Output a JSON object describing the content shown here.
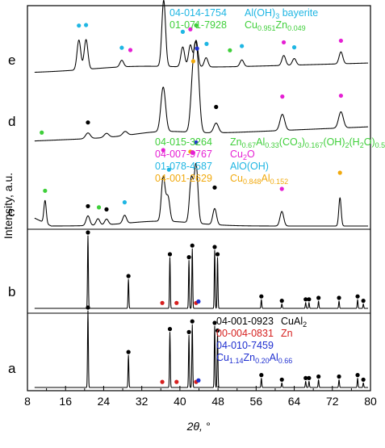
{
  "colors": {
    "black": "#000000",
    "red": "#d6201f",
    "blue": "#1f2fd0",
    "cyan": "#1fb6e3",
    "green": "#3fcf3a",
    "magenta": "#e51fd3",
    "orange": "#f1a90d"
  },
  "chart_data": {
    "type": "line",
    "xlabel": "2θ, °",
    "ylabel": "Intensity, a.u.",
    "xlim": [
      8,
      80
    ],
    "x_ticks": [
      "8",
      "16",
      "24",
      "32",
      "40",
      "48",
      "56",
      "64",
      "72",
      "80"
    ],
    "y_ticks_shown": false,
    "stacked": true,
    "series": [
      {
        "name": "a",
        "peaks": [
          [
            20.7,
            1.0
          ],
          [
            29.2,
            0.42
          ],
          [
            37.9,
            0.72
          ],
          [
            41.9,
            0.68
          ],
          [
            42.6,
            0.82
          ],
          [
            47.3,
            0.8
          ],
          [
            47.9,
            0.7
          ],
          [
            57.1,
            0.12
          ],
          [
            61.4,
            0.06
          ],
          [
            66.4,
            0.08
          ],
          [
            67.1,
            0.08
          ],
          [
            69.1,
            0.1
          ],
          [
            73.4,
            0.1
          ],
          [
            77.3,
            0.12
          ],
          [
            78.5,
            0.06
          ]
        ],
        "markers": [
          {
            "x": 20.7,
            "y": 1.0,
            "color": "black"
          },
          {
            "x": 29.2,
            "y": 0.42,
            "color": "black"
          },
          {
            "x": 36.3,
            "y": 0.03,
            "color": "red"
          },
          {
            "x": 37.9,
            "y": 0.72,
            "color": "black"
          },
          {
            "x": 39.3,
            "y": 0.03,
            "color": "red"
          },
          {
            "x": 41.9,
            "y": 0.68,
            "color": "black"
          },
          {
            "x": 42.6,
            "y": 0.82,
            "color": "black"
          },
          {
            "x": 43.4,
            "y": 0.03,
            "color": "red"
          },
          {
            "x": 43.9,
            "y": 0.05,
            "color": "blue"
          },
          {
            "x": 47.3,
            "y": 0.8,
            "color": "black"
          },
          {
            "x": 47.9,
            "y": 0.7,
            "color": "black"
          },
          {
            "x": 57.1,
            "y": 0.12,
            "color": "black"
          },
          {
            "x": 61.4,
            "y": 0.06,
            "color": "black"
          },
          {
            "x": 66.4,
            "y": 0.08,
            "color": "black"
          },
          {
            "x": 67.1,
            "y": 0.08,
            "color": "black"
          },
          {
            "x": 69.1,
            "y": 0.1,
            "color": "black"
          },
          {
            "x": 73.4,
            "y": 0.1,
            "color": "black"
          },
          {
            "x": 77.3,
            "y": 0.12,
            "color": "black"
          },
          {
            "x": 78.5,
            "y": 0.06,
            "color": "black"
          }
        ]
      },
      {
        "name": "b",
        "peaks": [
          [
            20.7,
            1.0
          ],
          [
            29.2,
            0.4
          ],
          [
            37.9,
            0.7
          ],
          [
            41.9,
            0.66
          ],
          [
            42.6,
            0.82
          ],
          [
            47.3,
            0.8
          ],
          [
            47.9,
            0.7
          ],
          [
            57.1,
            0.12
          ],
          [
            61.4,
            0.06
          ],
          [
            66.4,
            0.08
          ],
          [
            67.1,
            0.08
          ],
          [
            69.1,
            0.1
          ],
          [
            73.4,
            0.1
          ],
          [
            77.3,
            0.12
          ],
          [
            78.5,
            0.06
          ]
        ],
        "markers": [
          {
            "x": 20.7,
            "y": 1.0,
            "color": "black"
          },
          {
            "x": 29.2,
            "y": 0.4,
            "color": "black"
          },
          {
            "x": 36.3,
            "y": 0.03,
            "color": "red"
          },
          {
            "x": 37.9,
            "y": 0.7,
            "color": "black"
          },
          {
            "x": 39.3,
            "y": 0.03,
            "color": "red"
          },
          {
            "x": 41.9,
            "y": 0.66,
            "color": "black"
          },
          {
            "x": 42.6,
            "y": 0.82,
            "color": "black"
          },
          {
            "x": 43.4,
            "y": 0.03,
            "color": "red"
          },
          {
            "x": 43.9,
            "y": 0.05,
            "color": "blue"
          },
          {
            "x": 47.3,
            "y": 0.8,
            "color": "black"
          },
          {
            "x": 47.9,
            "y": 0.7,
            "color": "black"
          },
          {
            "x": 57.1,
            "y": 0.12,
            "color": "black"
          },
          {
            "x": 61.4,
            "y": 0.06,
            "color": "black"
          },
          {
            "x": 66.4,
            "y": 0.08,
            "color": "black"
          },
          {
            "x": 67.1,
            "y": 0.08,
            "color": "black"
          },
          {
            "x": 69.1,
            "y": 0.1,
            "color": "black"
          },
          {
            "x": 73.4,
            "y": 0.1,
            "color": "black"
          },
          {
            "x": 77.3,
            "y": 0.12,
            "color": "black"
          },
          {
            "x": 78.5,
            "y": 0.06,
            "color": "black"
          }
        ]
      },
      {
        "name": "c",
        "peaks": [
          [
            11.7,
            0.28
          ],
          [
            20.7,
            0.12
          ],
          [
            22.8,
            0.08
          ],
          [
            24.6,
            0.07
          ],
          [
            28.4,
            0.1
          ],
          [
            36.5,
            0.55
          ],
          [
            37.5,
            0.3
          ],
          [
            42.4,
            0.55
          ],
          [
            43.4,
            0.72
          ],
          [
            47.3,
            0.2
          ],
          [
            61.4,
            0.18
          ],
          [
            73.6,
            0.35
          ]
        ],
        "markers": [
          {
            "x": 11.7,
            "y": 0.36,
            "color": "green"
          },
          {
            "x": 20.7,
            "y": 0.2,
            "color": "black"
          },
          {
            "x": 23.0,
            "y": 0.18,
            "color": "green"
          },
          {
            "x": 24.6,
            "y": 0.15,
            "color": "black"
          },
          {
            "x": 28.4,
            "y": 0.22,
            "color": "cyan"
          },
          {
            "x": 36.5,
            "y": 0.84,
            "color": "magenta"
          },
          {
            "x": 37.7,
            "y": 0.6,
            "color": "cyan"
          },
          {
            "x": 42.2,
            "y": 0.84,
            "color": "orange"
          },
          {
            "x": 42.8,
            "y": 0.83,
            "color": "magenta"
          },
          {
            "x": 43.4,
            "y": 0.96,
            "color": "blue"
          },
          {
            "x": 47.3,
            "y": 0.42,
            "color": "black"
          },
          {
            "x": 61.4,
            "y": 0.42,
            "color": "magenta"
          },
          {
            "x": 73.6,
            "y": 0.62,
            "color": "orange"
          }
        ]
      },
      {
        "name": "d",
        "peaks": [
          [
            20.7,
            0.07
          ],
          [
            24.6,
            0.05
          ],
          [
            28.5,
            0.05
          ],
          [
            36.5,
            0.55
          ],
          [
            42.8,
            0.7
          ],
          [
            43.6,
            0.85
          ],
          [
            47.6,
            0.12
          ],
          [
            61.5,
            0.2
          ],
          [
            73.8,
            0.2
          ]
        ],
        "markers": [
          {
            "x": 11.0,
            "y": 0.06,
            "color": "green"
          },
          {
            "x": 20.7,
            "y": 0.16,
            "color": "black"
          },
          {
            "x": 42.8,
            "y": 0.84,
            "color": "orange"
          },
          {
            "x": 43.6,
            "y": 1.0,
            "color": "blue"
          },
          {
            "x": 47.6,
            "y": 0.28,
            "color": "black"
          },
          {
            "x": 61.5,
            "y": 0.38,
            "color": "magenta"
          },
          {
            "x": 73.8,
            "y": 0.36,
            "color": "magenta"
          }
        ]
      },
      {
        "name": "e",
        "peaks": [
          [
            18.8,
            0.45
          ],
          [
            20.3,
            0.45
          ],
          [
            27.8,
            0.1
          ],
          [
            36.6,
            1.0
          ],
          [
            40.6,
            0.3
          ],
          [
            42.2,
            0.33
          ],
          [
            43.4,
            0.4
          ],
          [
            45.5,
            0.14
          ],
          [
            53.0,
            0.1
          ],
          [
            61.8,
            0.15
          ],
          [
            64.0,
            0.1
          ],
          [
            73.8,
            0.18
          ]
        ],
        "markers": [
          {
            "x": 18.8,
            "y": 0.62,
            "color": "cyan"
          },
          {
            "x": 20.3,
            "y": 0.62,
            "color": "cyan"
          },
          {
            "x": 27.8,
            "y": 0.24,
            "color": "cyan"
          },
          {
            "x": 29.6,
            "y": 0.2,
            "color": "magenta"
          },
          {
            "x": 36.6,
            "y": 1.08,
            "color": "magenta"
          },
          {
            "x": 40.6,
            "y": 0.48,
            "color": "cyan"
          },
          {
            "x": 42.2,
            "y": 0.52,
            "color": "magenta"
          },
          {
            "x": 43.4,
            "y": 0.58,
            "color": "green"
          },
          {
            "x": 45.6,
            "y": 0.3,
            "color": "cyan"
          },
          {
            "x": 50.5,
            "y": 0.2,
            "color": "green"
          },
          {
            "x": 53.0,
            "y": 0.26,
            "color": "cyan"
          },
          {
            "x": 61.8,
            "y": 0.3,
            "color": "magenta"
          },
          {
            "x": 64.0,
            "y": 0.22,
            "color": "cyan"
          },
          {
            "x": 73.8,
            "y": 0.3,
            "color": "magenta"
          }
        ]
      }
    ],
    "legends": [
      {
        "group": "e",
        "entries": [
          {
            "code": "04-014-1754",
            "formula": [
              [
                "Al(OH)",
                ""
              ],
              [
                "3",
                "sub"
              ],
              [
                " bayerite",
                ""
              ]
            ],
            "color": "cyan"
          },
          {
            "code": "01-071-7928",
            "formula": [
              [
                "Cu",
                ""
              ],
              [
                "0.951",
                "sub"
              ],
              [
                "Zn",
                ""
              ],
              [
                "0.049",
                "sub"
              ]
            ],
            "color": "green"
          }
        ]
      },
      {
        "group": "c-d",
        "entries": [
          {
            "code": "04-015-3264",
            "formula": [
              [
                "Zn",
                ""
              ],
              [
                "0.67",
                "sub"
              ],
              [
                "Al",
                ""
              ],
              [
                "0.33",
                "sub"
              ],
              [
                "(CO",
                ""
              ],
              [
                "3",
                "sub"
              ],
              [
                ")",
                ""
              ],
              [
                "0.167",
                "sub"
              ],
              [
                "(OH)",
                ""
              ],
              [
                "2",
                "sub"
              ],
              [
                "(H",
                ""
              ],
              [
                "2",
                "sub"
              ],
              [
                "O)",
                ""
              ],
              [
                "0.5",
                "sub"
              ]
            ],
            "color": "green"
          },
          {
            "code": "04-007-9767",
            "formula": [
              [
                "Cu",
                ""
              ],
              [
                "2",
                "sub"
              ],
              [
                "O",
                ""
              ]
            ],
            "color": "magenta"
          },
          {
            "code": "01-078-4587",
            "formula": [
              [
                "AlO(OH)",
                ""
              ]
            ],
            "color": "cyan"
          },
          {
            "code": "04-001-2629",
            "formula": [
              [
                "Cu",
                ""
              ],
              [
                "0.848",
                "sub"
              ],
              [
                "Al",
                ""
              ],
              [
                "0.152",
                "sub"
              ]
            ],
            "color": "orange"
          }
        ]
      },
      {
        "group": "a-b",
        "entries": [
          {
            "code": "04-001-0923",
            "formula": [
              [
                "CuAl",
                ""
              ],
              [
                "2",
                "sub"
              ]
            ],
            "color": "black"
          },
          {
            "code": "00-004-0831",
            "formula": [
              [
                "Zn",
                ""
              ]
            ],
            "color": "red"
          },
          {
            "code": "04-010-7459",
            "formula": [],
            "color": "blue"
          },
          {
            "code": "",
            "formula": [
              [
                "Cu",
                ""
              ],
              [
                "1.14",
                "sub"
              ],
              [
                "Zn",
                ""
              ],
              [
                "0.20",
                "sub"
              ],
              [
                "Al",
                ""
              ],
              [
                "0.66",
                "sub"
              ]
            ],
            "color": "blue"
          }
        ]
      }
    ]
  }
}
